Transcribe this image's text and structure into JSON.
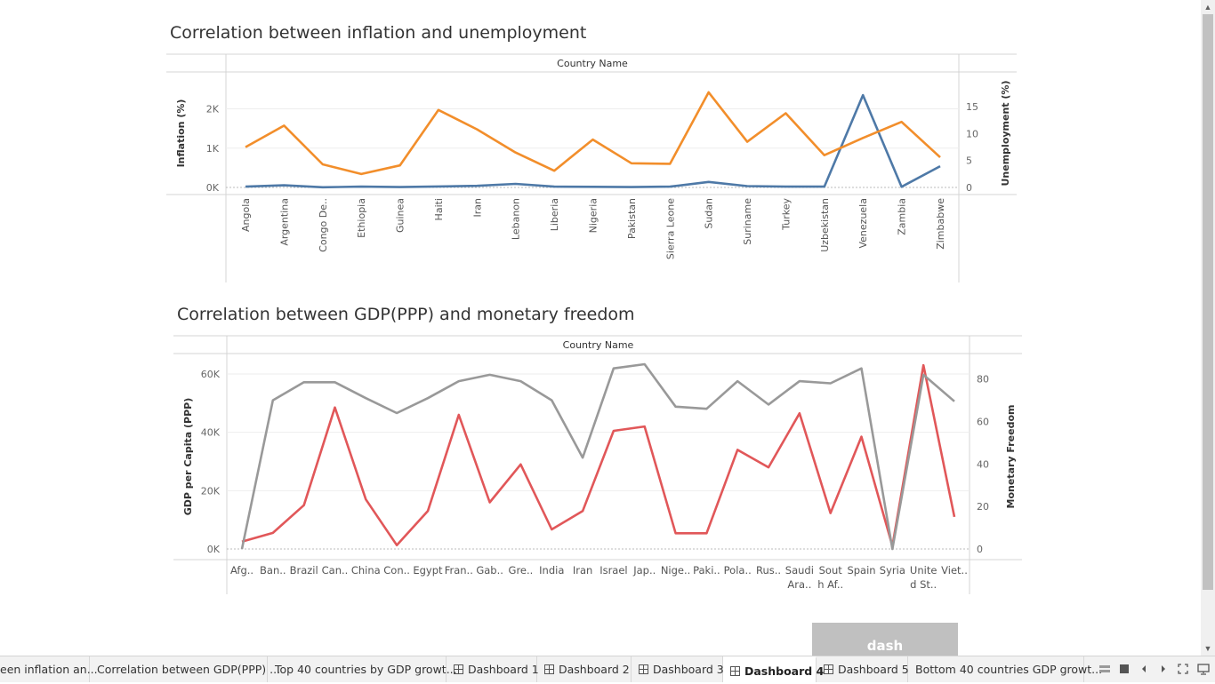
{
  "chart1": {
    "title": "Correlation between inflation and unemployment",
    "header": "Country Name",
    "ylabel_left": "Inflation (%)",
    "ylabel_right": "Unemployment (%)",
    "left_ticks": [
      "0K",
      "1K",
      "2K"
    ],
    "right_ticks": [
      "0",
      "5",
      "10",
      "15"
    ],
    "categories": [
      "Angola",
      "Argentina",
      "Congo De..",
      "Ethiopia",
      "Guinea",
      "Haiti",
      "Iran",
      "Lebanon",
      "Liberia",
      "Nigeria",
      "Pakistan",
      "Sierra Leone",
      "Sudan",
      "Suriname",
      "Turkey",
      "Uzbekistan",
      "Venezuela",
      "Zambia",
      "Zimbabwe"
    ]
  },
  "chart2": {
    "title": "Correlation between GDP(PPP) and monetary freedom",
    "header": "Country Name",
    "ylabel_left": "GDP per Capita (PPP)",
    "ylabel_right": "Monetary Freedom",
    "left_ticks": [
      "0K",
      "20K",
      "40K",
      "60K"
    ],
    "right_ticks": [
      "0",
      "20",
      "40",
      "60",
      "80"
    ],
    "categories": [
      [
        "Afg.."
      ],
      [
        "Ban.."
      ],
      [
        "Brazil"
      ],
      [
        "Can.."
      ],
      [
        "China"
      ],
      [
        "Con.."
      ],
      [
        "Egypt"
      ],
      [
        "Fran.."
      ],
      [
        "Gab.."
      ],
      [
        "Gre.."
      ],
      [
        "India"
      ],
      [
        "Iran"
      ],
      [
        "Israel"
      ],
      [
        "Jap.."
      ],
      [
        "Nige.."
      ],
      [
        "Paki.."
      ],
      [
        "Pola.."
      ],
      [
        "Rus.."
      ],
      [
        "Saudi",
        "Ara.."
      ],
      [
        "Sout",
        "h Af.."
      ],
      [
        "Spain"
      ],
      [
        "Syria"
      ],
      [
        "Unite",
        "d St.."
      ],
      [
        "Viet.."
      ]
    ]
  },
  "chart_data": [
    {
      "type": "line",
      "title": "Correlation between inflation and unemployment",
      "xlabel": "Country Name",
      "categories": [
        "Angola",
        "Argentina",
        "Congo De..",
        "Ethiopia",
        "Guinea",
        "Haiti",
        "Iran",
        "Lebanon",
        "Liberia",
        "Nigeria",
        "Pakistan",
        "Sierra Leone",
        "Sudan",
        "Suriname",
        "Turkey",
        "Uzbekistan",
        "Venezuela",
        "Zambia",
        "Zimbabwe"
      ],
      "series": [
        {
          "name": "Inflation (%)",
          "axis": "left",
          "color": "#4e79a7",
          "values": [
            20,
            55,
            5,
            20,
            10,
            25,
            40,
            90,
            20,
            15,
            10,
            20,
            140,
            35,
            20,
            20,
            2350,
            15,
            540
          ]
        },
        {
          "name": "Unemployment (%)",
          "axis": "right",
          "color": "#f28e2b",
          "values": [
            7.5,
            11.5,
            4.3,
            2.5,
            4.1,
            14.4,
            10.8,
            6.5,
            3.1,
            8.9,
            4.5,
            4.4,
            17.7,
            8.5,
            13.8,
            6,
            9.2,
            12.2,
            5.6
          ]
        }
      ],
      "ylim_left": [
        0,
        2600
      ],
      "ylim_right": [
        0,
        19
      ],
      "grid": true
    },
    {
      "type": "line",
      "title": "Correlation between GDP(PPP) and monetary freedom",
      "xlabel": "Country Name",
      "categories": [
        "Afg..",
        "Ban..",
        "Brazil",
        "Can..",
        "China",
        "Con..",
        "Egypt",
        "Fran..",
        "Gab..",
        "Gre..",
        "India",
        "Iran",
        "Israel",
        "Jap..",
        "Nige..",
        "Paki..",
        "Pola..",
        "Rus..",
        "Saudi Ara..",
        "South Af..",
        "Spain",
        "Syria",
        "United St..",
        "Viet.."
      ],
      "series": [
        {
          "name": "GDP per Capita (PPP)",
          "axis": "left",
          "color": "#e15759",
          "values": [
            2500,
            5500,
            15000,
            48500,
            17000,
            1300,
            13000,
            46000,
            16000,
            29000,
            6700,
            13000,
            40500,
            42000,
            5400,
            5400,
            34000,
            28000,
            46500,
            12300,
            38500,
            1000,
            63000,
            11000
          ]
        },
        {
          "name": "Monetary Freedom",
          "axis": "right",
          "color": "#999999",
          "values": [
            0,
            70,
            78.5,
            78.5,
            71,
            64,
            71,
            79,
            82,
            79,
            70,
            43,
            85,
            87,
            67,
            66,
            79,
            68,
            79,
            78,
            85,
            0,
            82,
            69.5
          ]
        }
      ],
      "ylim_left": [
        0,
        67000
      ],
      "ylim_right": [
        0,
        92
      ],
      "grid": true
    }
  ],
  "dash": {
    "label": "dash"
  },
  "tabs": [
    {
      "label": "een inflation an...",
      "icon": false,
      "active": false
    },
    {
      "label": "Correlation between GDP(PPP) ...",
      "icon": false,
      "active": false
    },
    {
      "label": "Top 40 countries by GDP growt...",
      "icon": false,
      "active": false
    },
    {
      "label": "Dashboard 1",
      "icon": true,
      "active": false
    },
    {
      "label": "Dashboard 2",
      "icon": true,
      "active": false
    },
    {
      "label": "Dashboard 3",
      "icon": true,
      "active": false
    },
    {
      "label": "Dashboard 4",
      "icon": true,
      "active": true
    },
    {
      "label": "Dashboard 5",
      "icon": true,
      "active": false
    },
    {
      "label": "Bottom 40 countries GDP growt...",
      "icon": false,
      "active": false
    }
  ],
  "controls": {
    "icons": [
      "sheet-sorter-icon",
      "filmstrip-icon",
      "prev-sheet-icon",
      "next-sheet-icon",
      "fullscreen-icon",
      "presentation-icon"
    ]
  }
}
